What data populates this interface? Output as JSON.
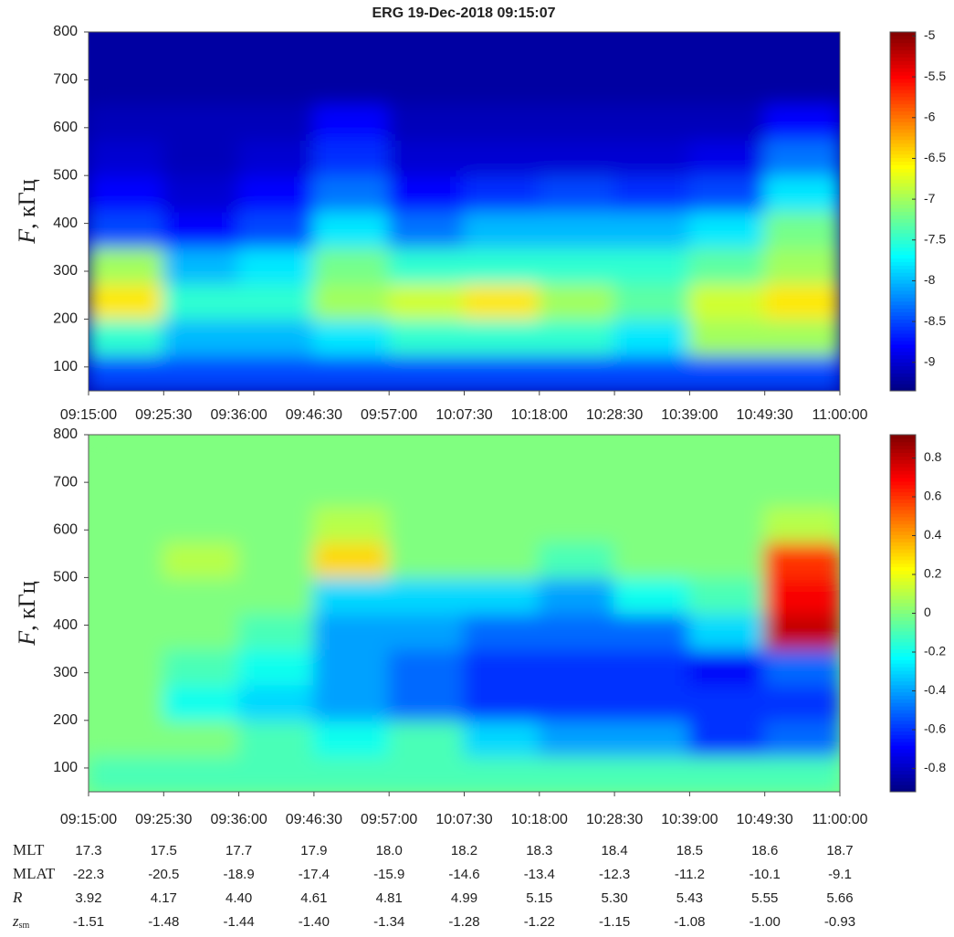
{
  "chart_data": [
    {
      "type": "heatmap",
      "title": "ERG  19-Dec-2018 09:15:07",
      "ylabel": {
        "symbol": "F",
        "unit": ", кГц"
      },
      "xticks": [
        "09:15:00",
        "09:25:30",
        "09:36:00",
        "09:46:30",
        "09:57:00",
        "10:07:30",
        "10:18:00",
        "10:28:30",
        "10:39:00",
        "10:49:30",
        "11:00:00"
      ],
      "ylim": [
        50,
        800
      ],
      "yticks": [
        100,
        200,
        300,
        400,
        500,
        600,
        700,
        800
      ],
      "ybins": [
        50,
        125,
        200,
        275,
        350,
        425,
        500,
        575,
        650,
        725,
        800
      ],
      "z": [
        [
          -8.5,
          -8.5,
          -8.5,
          -8.5,
          -8.5,
          -8.5,
          -8.5,
          -8.5,
          -8.5,
          -8.5
        ],
        [
          -7.5,
          -8,
          -8,
          -7.8,
          -7.5,
          -7.5,
          -7.5,
          -7.8,
          -7,
          -7
        ],
        [
          -6.5,
          -7.5,
          -7.5,
          -7,
          -6.8,
          -6.5,
          -7,
          -7.3,
          -6.8,
          -6.5
        ],
        [
          -7,
          -8,
          -7.8,
          -7.2,
          -7.5,
          -7.5,
          -7.5,
          -7.5,
          -7.3,
          -7
        ],
        [
          -8.5,
          -8.8,
          -8.5,
          -7.8,
          -8.3,
          -8,
          -8,
          -8,
          -7.8,
          -7.2
        ],
        [
          -8.8,
          -9,
          -8.8,
          -8.3,
          -8.8,
          -8.6,
          -8.5,
          -8.6,
          -8.5,
          -7.8
        ],
        [
          -9,
          -9.1,
          -9,
          -8.6,
          -9,
          -9,
          -9,
          -9,
          -8.9,
          -8.3
        ],
        [
          -9.1,
          -9.1,
          -9.1,
          -8.8,
          -9.1,
          -9.1,
          -9.1,
          -9.1,
          -9.1,
          -8.8
        ],
        [
          -9.2,
          -9.2,
          -9.2,
          -9.2,
          -9.2,
          -9.2,
          -9.2,
          -9.2,
          -9.2,
          -9.2
        ],
        [
          -9.2,
          -9.2,
          -9.2,
          -9.2,
          -9.2,
          -9.2,
          -9.2,
          -9.2,
          -9.2,
          -9.2
        ]
      ],
      "clim": [
        -9.35,
        -4.95
      ],
      "cticks": [
        -9,
        -8.5,
        -8,
        -7.5,
        -7,
        -6.5,
        -6,
        -5.5,
        -5
      ],
      "colormap": "jet"
    },
    {
      "type": "heatmap",
      "ylabel": {
        "symbol": "F",
        "unit": ", кГц"
      },
      "xticks": [
        "09:15:00",
        "09:25:30",
        "09:36:00",
        "09:46:30",
        "09:57:00",
        "10:07:30",
        "10:18:00",
        "10:28:30",
        "10:39:00",
        "10:49:30",
        "11:00:00"
      ],
      "ylim": [
        50,
        800
      ],
      "yticks": [
        100,
        200,
        300,
        400,
        500,
        600,
        700,
        800
      ],
      "ybins": [
        50,
        125,
        200,
        275,
        350,
        425,
        500,
        575,
        650,
        725,
        800
      ],
      "z": [
        [
          -0.1,
          -0.1,
          -0.1,
          -0.1,
          -0.1,
          -0.1,
          -0.1,
          -0.1,
          -0.1,
          -0.1
        ],
        [
          0,
          0,
          -0.1,
          -0.2,
          -0.1,
          -0.3,
          -0.4,
          -0.4,
          -0.6,
          -0.5
        ],
        [
          0,
          -0.2,
          -0.3,
          -0.4,
          -0.5,
          -0.6,
          -0.6,
          -0.6,
          -0.6,
          -0.6
        ],
        [
          0,
          -0.1,
          -0.2,
          -0.4,
          -0.5,
          -0.6,
          -0.6,
          -0.6,
          -0.7,
          -0.5
        ],
        [
          0,
          0,
          -0.1,
          -0.4,
          -0.4,
          -0.5,
          -0.5,
          -0.5,
          -0.3,
          0.8
        ],
        [
          0,
          0,
          0,
          -0.3,
          -0.3,
          -0.3,
          -0.4,
          -0.2,
          -0.1,
          0.7
        ],
        [
          0,
          0.1,
          0,
          0.3,
          0,
          0,
          -0.1,
          0,
          0,
          0.6
        ],
        [
          0,
          0,
          0,
          0.1,
          0,
          0,
          0,
          0,
          0,
          0.1
        ],
        [
          0,
          0,
          0,
          0,
          0,
          0,
          0,
          0,
          0,
          0
        ],
        [
          0,
          0,
          0,
          0,
          0,
          0,
          0,
          0,
          0,
          0
        ]
      ],
      "clim": [
        -0.92,
        0.92
      ],
      "cticks": [
        -0.8,
        -0.6,
        -0.4,
        -0.2,
        0,
        0.2,
        0.4,
        0.6,
        0.8
      ],
      "colormap": "jet"
    }
  ],
  "table": {
    "rows": [
      {
        "label": "MLT",
        "values": [
          "17.3",
          "17.5",
          "17.7",
          "17.9",
          "18.0",
          "18.2",
          "18.3",
          "18.4",
          "18.5",
          "18.6",
          "18.7"
        ]
      },
      {
        "label": "MLAT",
        "values": [
          "-22.3",
          "-20.5",
          "-18.9",
          "-17.4",
          "-15.9",
          "-14.6",
          "-13.4",
          "-12.3",
          "-11.2",
          "-10.1",
          "-9.1"
        ]
      },
      {
        "label": "R",
        "italic": true,
        "values": [
          "3.92",
          "4.17",
          "4.40",
          "4.61",
          "4.81",
          "4.99",
          "5.15",
          "5.30",
          "5.43",
          "5.55",
          "5.66"
        ]
      },
      {
        "label": "z",
        "sub": "sm",
        "italic": true,
        "values": [
          "-1.51",
          "-1.48",
          "-1.44",
          "-1.40",
          "-1.34",
          "-1.28",
          "-1.22",
          "-1.15",
          "-1.08",
          "-1.00",
          "-0.93"
        ]
      }
    ]
  }
}
